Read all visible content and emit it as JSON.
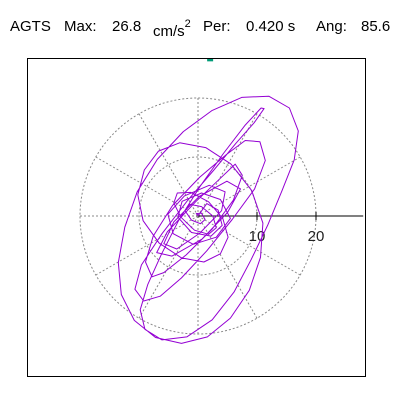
{
  "header": {
    "station": "AGTS",
    "max_label": "Max:",
    "max_value": "26.8",
    "max_unit_base": "cm/s",
    "max_unit_exp": "2",
    "per_label": "Per:",
    "per_value": "0.420 s",
    "ang_label": "Ang:",
    "ang_value": "85.6"
  },
  "chart_data": {
    "type": "line",
    "title": "",
    "xlabel": "",
    "ylabel": "",
    "unit": "cm/s2",
    "radial_rings": [
      10,
      20
    ],
    "ring_tick_labels": [
      "10",
      "20"
    ],
    "spoke_step_deg": 30,
    "axis_max": 28,
    "peak": {
      "magnitude": 26.8,
      "angle_deg": 85.6
    },
    "grid": true,
    "colors": {
      "trace": "#9400d3",
      "peak_marker": "#009b77",
      "grid": "#888888",
      "axis": "#000000"
    },
    "series": [
      {
        "x": [
          0,
          1.5,
          3.4,
          4.1,
          2.2,
          -1.1,
          -3.4,
          -2.7,
          0.6,
          3.8,
          5.5,
          3.1,
          -0.8,
          -4.2,
          -5.1,
          -2.3,
          1.9,
          4.6,
          4.0,
          0.3,
          -3.6,
          -5.8,
          -4.1,
          0.2,
          4.9,
          7.2,
          5.0,
          0.7,
          -4.4,
          -7.0,
          -5.2,
          -0.4,
          3.7,
          6.3,
          7.5,
          6.0,
          2.4,
          -2.0,
          -5.8,
          -7.8,
          -8.9,
          -7.6,
          -4.3,
          0.3,
          4.8,
          8.0,
          10.5,
          11.4,
          9.6,
          5.8,
          1.5,
          -2.8,
          -6.4,
          -9.2,
          -10.7,
          -9.6,
          -6.1,
          -1.8,
          2.7,
          6.4,
          9.5,
          11.2,
          10.7,
          8.0,
          4.3,
          0.4,
          -3.3,
          -6.2,
          -8.5,
          -9.8,
          -9.0,
          -6.1,
          -1.9,
          2.4,
          6.1,
          9.0,
          11.8,
          14.2,
          16.3,
          17.0,
          15.5,
          12.0,
          7.4,
          2.4,
          -2.5,
          -6.9,
          -10.3,
          -12.4,
          -13.5,
          -13.0,
          -10.8,
          -7.2,
          -2.8,
          1.6,
          5.5,
          8.7,
          10.6,
          11.0,
          9.1,
          5.6,
          1.3,
          -3.1,
          -6.7,
          -9.1,
          -10.2,
          -9.3,
          -6.6,
          -2.8,
          1.0,
          3.8,
          5.1,
          4.2,
          1.8,
          -1.2,
          -3.5,
          -4.1,
          -2.9,
          -0.6,
          1.8,
          3.1,
          2.5,
          0.6,
          -1.4,
          -2.2,
          -1.1,
          0.4,
          1.2,
          0.6,
          -0.3,
          0.1
        ],
        "y": [
          0,
          2.1,
          1.0,
          -1.6,
          -3.4,
          -2.8,
          -0.2,
          2.5,
          3.9,
          2.8,
          -0.4,
          -3.6,
          -4.8,
          -3.0,
          0.3,
          3.4,
          5.2,
          4.1,
          0.9,
          -2.9,
          -5.6,
          -4.7,
          -1.0,
          3.3,
          5.9,
          4.6,
          0.6,
          -3.9,
          -6.8,
          -6.2,
          -2.7,
          2.4,
          6.3,
          8.8,
          6.9,
          2.7,
          -2.2,
          -6.6,
          -9.6,
          -10.3,
          -7.8,
          -3.4,
          1.8,
          6.6,
          10.4,
          12.8,
          12.6,
          9.4,
          4.6,
          -0.6,
          -5.9,
          -10.5,
          -13.6,
          -14.4,
          -12.4,
          -8.3,
          -3.0,
          2.6,
          7.8,
          12.3,
          15.8,
          18.2,
          18.3,
          15.4,
          10.6,
          5.1,
          -0.8,
          -6.5,
          -11.6,
          -15.9,
          -19.2,
          -21.0,
          -20.5,
          -17.6,
          -12.9,
          -7.4,
          -1.6,
          4.2,
          9.5,
          14.4,
          18.3,
          20.3,
          20.1,
          17.9,
          14.3,
          9.6,
          4.1,
          -1.9,
          -7.9,
          -13.3,
          -17.7,
          -20.6,
          -21.6,
          -20.5,
          -17.3,
          -12.6,
          -7.0,
          -1.2,
          4.3,
          8.8,
          11.6,
          12.4,
          11.0,
          7.8,
          3.6,
          -0.8,
          -4.6,
          -7.1,
          -7.8,
          -6.4,
          -3.6,
          -0.4,
          2.4,
          4.0,
          3.9,
          2.2,
          -0.2,
          -2.4,
          -3.1,
          -2.0,
          0.0,
          1.6,
          2.0,
          0.9,
          -0.7,
          -1.3,
          -0.6,
          0.5,
          0.4,
          0.0
        ]
      }
    ]
  }
}
